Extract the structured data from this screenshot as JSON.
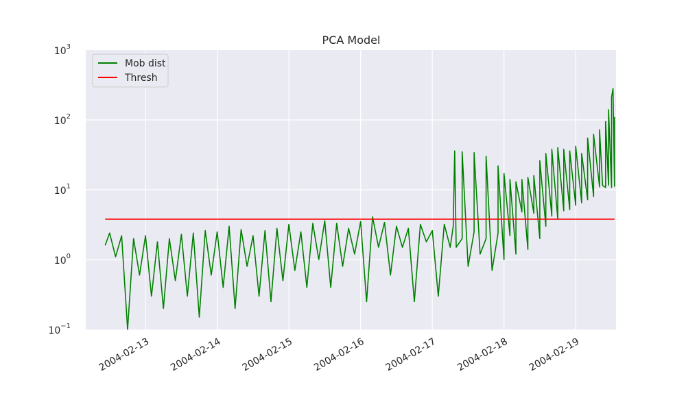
{
  "chart_data": {
    "type": "line",
    "title": "PCA Model",
    "xlabel": "",
    "ylabel": "",
    "yscale": "log",
    "ylim": [
      0.1,
      1000
    ],
    "y_tick_labels": [
      "10^-1",
      "10^0",
      "10^1",
      "10^2",
      "10^3"
    ],
    "xlim": [
      "2004-02-12T04:00",
      "2004-02-19T13:30"
    ],
    "x_tick_labels": [
      "2004-02-13",
      "2004-02-14",
      "2004-02-15",
      "2004-02-16",
      "2004-02-17",
      "2004-02-18",
      "2004-02-19"
    ],
    "grid": true,
    "legend_position": "upper-left",
    "background_color": "#EAEAF2",
    "series": [
      {
        "name": "Mob dist",
        "color": "#008000",
        "x": [
          "2004-02-12T10:30",
          "2004-02-12T12:00",
          "2004-02-12T14:00",
          "2004-02-12T16:00",
          "2004-02-12T18:00",
          "2004-02-12T20:00",
          "2004-02-12T22:00",
          "2004-02-13T00:00",
          "2004-02-13T02:00",
          "2004-02-13T04:00",
          "2004-02-13T06:00",
          "2004-02-13T08:00",
          "2004-02-13T10:00",
          "2004-02-13T12:00",
          "2004-02-13T14:00",
          "2004-02-13T16:00",
          "2004-02-13T18:00",
          "2004-02-13T20:00",
          "2004-02-13T22:00",
          "2004-02-14T00:00",
          "2004-02-14T02:00",
          "2004-02-14T04:00",
          "2004-02-14T06:00",
          "2004-02-14T08:00",
          "2004-02-14T10:00",
          "2004-02-14T12:00",
          "2004-02-14T14:00",
          "2004-02-14T16:00",
          "2004-02-14T18:00",
          "2004-02-14T20:00",
          "2004-02-14T22:00",
          "2004-02-15T00:00",
          "2004-02-15T02:00",
          "2004-02-15T04:00",
          "2004-02-15T06:00",
          "2004-02-15T08:00",
          "2004-02-15T10:00",
          "2004-02-15T12:00",
          "2004-02-15T14:00",
          "2004-02-15T16:00",
          "2004-02-15T18:00",
          "2004-02-15T20:00",
          "2004-02-15T22:00",
          "2004-02-16T00:00",
          "2004-02-16T02:00",
          "2004-02-16T04:00",
          "2004-02-16T06:00",
          "2004-02-16T08:00",
          "2004-02-16T10:00",
          "2004-02-16T12:00",
          "2004-02-16T14:00",
          "2004-02-16T16:00",
          "2004-02-16T18:00",
          "2004-02-16T20:00",
          "2004-02-16T22:00",
          "2004-02-17T00:00",
          "2004-02-17T02:00",
          "2004-02-17T04:00",
          "2004-02-17T06:00",
          "2004-02-17T07:00",
          "2004-02-17T08:00",
          "2004-02-17T10:00",
          "2004-02-17T12:00",
          "2004-02-17T14:00",
          "2004-02-17T16:00",
          "2004-02-17T18:00",
          "2004-02-17T20:00",
          "2004-02-17T22:00",
          "2004-02-18T00:00",
          "2004-02-18T02:00",
          "2004-02-18T04:00",
          "2004-02-18T06:00",
          "2004-02-18T08:00",
          "2004-02-18T10:00",
          "2004-02-18T12:00",
          "2004-02-18T14:00",
          "2004-02-18T16:00",
          "2004-02-18T18:00",
          "2004-02-18T20:00",
          "2004-02-18T22:00",
          "2004-02-19T00:00",
          "2004-02-19T02:00",
          "2004-02-19T04:00",
          "2004-02-19T06:00",
          "2004-02-19T08:00",
          "2004-02-19T09:00",
          "2004-02-19T10:00",
          "2004-02-19T11:00",
          "2004-02-19T12:00",
          "2004-02-19T13:00"
        ],
        "values": [
          1.6,
          2.4,
          1.1,
          2.2,
          0.1,
          2.0,
          0.6,
          2.2,
          0.3,
          1.8,
          0.2,
          2.0,
          0.5,
          2.3,
          0.3,
          2.4,
          0.15,
          2.6,
          0.6,
          2.5,
          0.4,
          3.0,
          0.2,
          2.7,
          0.8,
          2.2,
          0.3,
          2.6,
          0.25,
          2.8,
          0.5,
          3.2,
          0.7,
          2.5,
          0.4,
          3.3,
          1.0,
          3.6,
          0.4,
          3.3,
          0.8,
          2.8,
          1.2,
          3.5,
          0.25,
          4.1,
          1.5,
          3.4,
          0.6,
          3.0,
          1.5,
          2.8,
          0.25,
          3.2,
          1.8,
          2.6,
          0.3,
          3.2,
          1.5,
          3.0,
          1.5,
          2.0,
          0.8,
          2.5,
          1.2,
          2.0,
          0.7,
          2.4,
          1.0,
          2.2,
          1.2,
          4.8,
          1.4,
          4.6,
          2.0,
          3.0,
          4.2,
          3.8,
          5.0,
          5.2,
          6.0,
          6.5,
          7.2,
          8.0,
          11.0,
          11.5,
          10.8,
          11.6,
          10.8,
          11.2
        ]
      },
      {
        "name": "Thresh",
        "color": "#FF0000",
        "x": [
          "2004-02-12T10:30",
          "2004-02-19T13:00"
        ],
        "values": [
          3.8,
          3.8
        ]
      }
    ]
  },
  "mob_tail": {
    "x": [
      "2004-02-17T07:30",
      "2004-02-17T10:00",
      "2004-02-17T14:00",
      "2004-02-17T18:00",
      "2004-02-17T22:00",
      "2004-02-18T00:00",
      "2004-02-18T02:00",
      "2004-02-18T04:00",
      "2004-02-18T06:00",
      "2004-02-18T08:00",
      "2004-02-18T10:00",
      "2004-02-18T12:00",
      "2004-02-18T14:00",
      "2004-02-18T16:00",
      "2004-02-18T18:00",
      "2004-02-18T20:00",
      "2004-02-18T22:00",
      "2004-02-19T00:00",
      "2004-02-19T02:00",
      "2004-02-19T04:00",
      "2004-02-19T06:00",
      "2004-02-19T08:00",
      "2004-02-19T10:00",
      "2004-02-19T11:00",
      "2004-02-19T12:00",
      "2004-02-19T12:30",
      "2004-02-19T13:00"
    ],
    "values": [
      36,
      35,
      34,
      30,
      22,
      17,
      14,
      13,
      14,
      15,
      16,
      26,
      33,
      38,
      40,
      38,
      36,
      42,
      33,
      55,
      62,
      72,
      95,
      140,
      210,
      280,
      110
    ]
  }
}
